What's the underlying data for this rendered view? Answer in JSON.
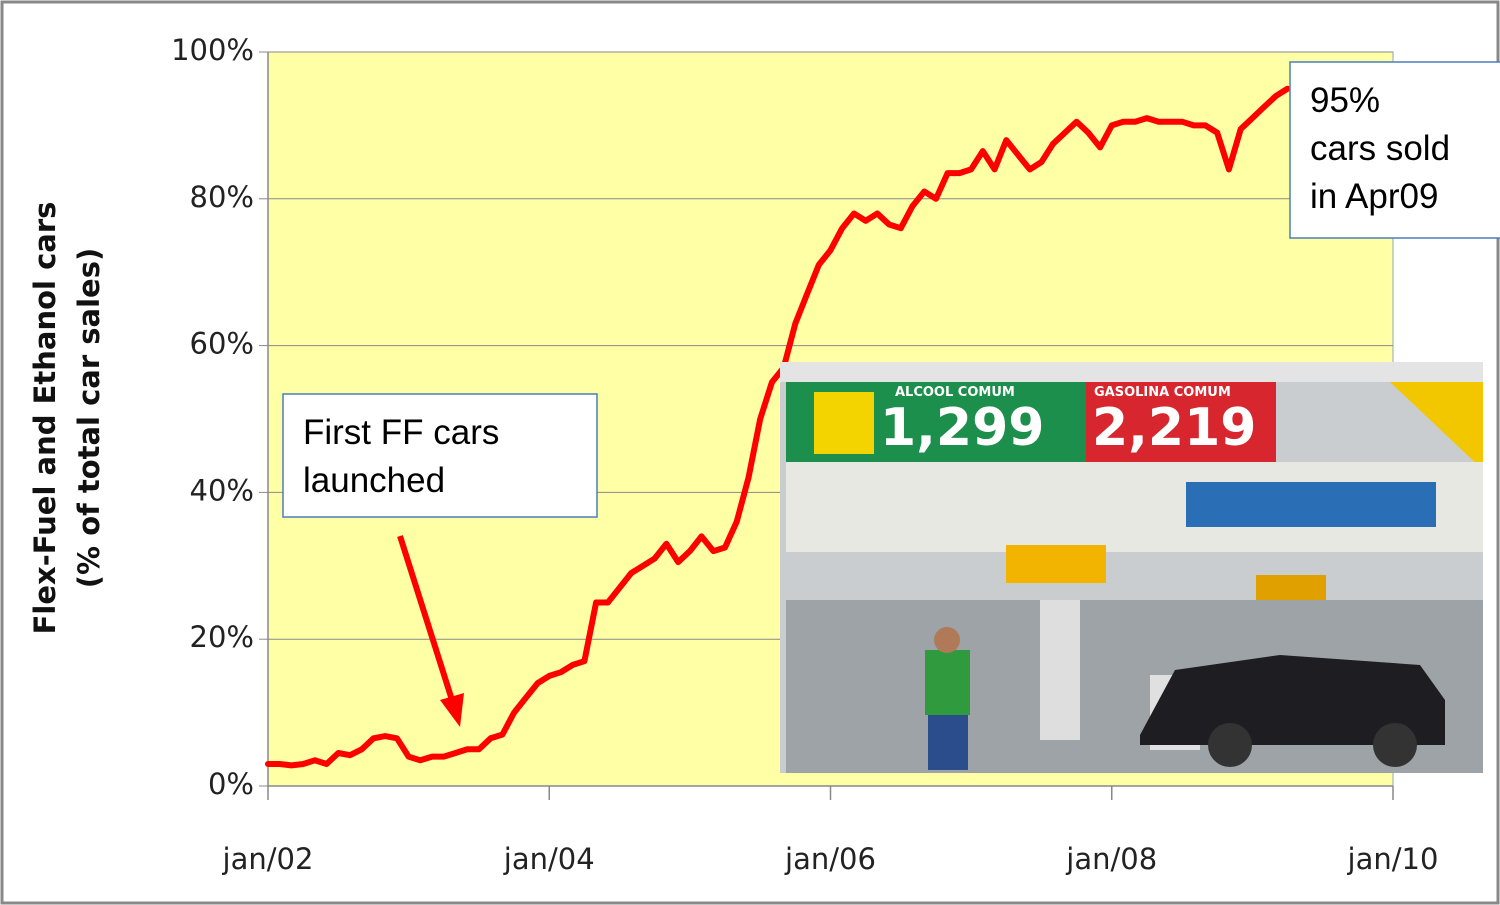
{
  "chart_data": {
    "type": "line",
    "y_label": [
      "Flex-Fuel and  Ethanol cars",
      "(% of total car sales)"
    ],
    "color": "#ff0000",
    "plot_background": "#ffffa6",
    "grid": true,
    "xlim": [
      2002,
      2010
    ],
    "xticks": [
      {
        "value": 2002,
        "label": "jan/02"
      },
      {
        "value": 2004,
        "label": "jan/04"
      },
      {
        "value": 2006,
        "label": "jan/06"
      },
      {
        "value": 2008,
        "label": "jan/08"
      },
      {
        "value": 2010,
        "label": "jan/10"
      }
    ],
    "ylim": [
      0,
      100
    ],
    "yticks": [
      {
        "value": 0,
        "label": "0%"
      },
      {
        "value": 20,
        "label": "20%"
      },
      {
        "value": 40,
        "label": "40%"
      },
      {
        "value": 60,
        "label": "60%"
      },
      {
        "value": 80,
        "label": "80%"
      },
      {
        "value": 100,
        "label": "100%"
      }
    ],
    "x": [
      2002,
      2002.083,
      2002.167,
      2002.25,
      2002.333,
      2002.417,
      2002.5,
      2002.583,
      2002.667,
      2002.75,
      2002.833,
      2002.917,
      2003,
      2003.083,
      2003.167,
      2003.25,
      2003.333,
      2003.417,
      2003.5,
      2003.583,
      2003.667,
      2003.75,
      2003.833,
      2003.917,
      2004,
      2004.083,
      2004.167,
      2004.25,
      2004.333,
      2004.417,
      2004.5,
      2004.583,
      2004.667,
      2004.75,
      2004.833,
      2004.917,
      2005,
      2005.083,
      2005.167,
      2005.25,
      2005.333,
      2005.417,
      2005.5,
      2005.583,
      2005.667,
      2005.75,
      2005.833,
      2005.917,
      2006,
      2006.083,
      2006.167,
      2006.25,
      2006.333,
      2006.417,
      2006.5,
      2006.583,
      2006.667,
      2006.75,
      2006.833,
      2006.917,
      2007,
      2007.083,
      2007.167,
      2007.25,
      2007.333,
      2007.417,
      2007.5,
      2007.583,
      2007.667,
      2007.75,
      2007.833,
      2007.917,
      2008,
      2008.083,
      2008.167,
      2008.25,
      2008.333,
      2008.417,
      2008.5,
      2008.583,
      2008.667,
      2008.75,
      2008.833,
      2008.917,
      2009,
      2009.083,
      2009.167,
      2009.25
    ],
    "values": [
      3,
      3,
      2.8,
      3,
      3.5,
      3,
      4.5,
      4.2,
      5,
      6.5,
      6.8,
      6.5,
      4,
      3.5,
      4,
      4,
      4.5,
      5,
      5,
      6.5,
      7,
      10,
      12,
      14,
      15,
      15.5,
      16.5,
      17,
      25,
      25,
      27,
      29,
      30,
      31,
      33,
      30.5,
      32,
      34,
      32,
      32.5,
      36,
      42,
      50,
      55,
      57,
      63,
      67,
      71,
      73,
      76,
      78,
      77,
      78,
      76.5,
      76,
      79,
      81,
      80,
      83.5,
      83.5,
      84,
      86.5,
      84,
      88,
      86,
      84,
      85,
      87.5,
      89,
      90.5,
      89,
      87,
      90,
      90.5,
      90.5,
      91,
      90.5,
      90.5,
      90.5,
      90,
      90,
      89,
      84,
      89.5,
      91,
      92.5,
      94,
      95
    ],
    "annotations": [
      {
        "lines": [
          "95%",
          "cars sold",
          "in Apr09"
        ]
      },
      {
        "lines": [
          "First FF cars",
          "launched"
        ]
      }
    ],
    "inset_photo": {
      "signs": [
        "ALCOOL COMUM",
        "1,299",
        "GASOLINA COMUM",
        "2,219"
      ]
    }
  }
}
